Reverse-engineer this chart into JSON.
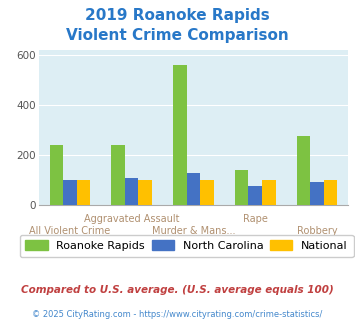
{
  "title_line1": "2019 Roanoke Rapids",
  "title_line2": "Violent Crime Comparison",
  "title_color": "#2878c8",
  "roanoke_rapids": [
    240,
    240,
    560,
    137,
    275
  ],
  "north_carolina": [
    100,
    105,
    125,
    75,
    92
  ],
  "national": [
    100,
    100,
    100,
    100,
    100
  ],
  "colors": {
    "roanoke_rapids": "#7dc242",
    "north_carolina": "#4472c4",
    "national": "#ffc000"
  },
  "ylim": [
    0,
    620
  ],
  "yticks": [
    0,
    200,
    400,
    600
  ],
  "background_color": "#ddeef4",
  "grid_color": "#ffffff",
  "x_top_labels": [
    "",
    "Aggravated Assault",
    "",
    "Rape",
    ""
  ],
  "x_bot_labels": [
    "All Violent Crime",
    "Murder & Mans...",
    "",
    "",
    "Robbery"
  ],
  "footnote1": "Compared to U.S. average. (U.S. average equals 100)",
  "footnote2": "© 2025 CityRating.com - https://www.cityrating.com/crime-statistics/",
  "footnote1_color": "#c04040",
  "footnote2_color": "#4488cc",
  "label_color": "#b09070"
}
